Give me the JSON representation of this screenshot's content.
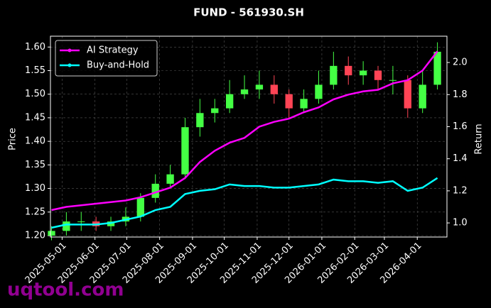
{
  "chart_data": {
    "type": "candlestick",
    "title": "FUND - 561930.SH",
    "ylabel": "Price",
    "y2label": "Return",
    "x": [
      "2025-04-21",
      "2025-05-05",
      "2025-05-19",
      "2025-06-02",
      "2025-06-16",
      "2025-06-30",
      "2025-07-14",
      "2025-07-28",
      "2025-08-11",
      "2025-08-25",
      "2025-09-08",
      "2025-09-22",
      "2025-10-06",
      "2025-10-20",
      "2025-11-03",
      "2025-11-17",
      "2025-12-01",
      "2025-12-15",
      "2025-12-29",
      "2026-01-12",
      "2026-01-26",
      "2026-02-09",
      "2026-02-23",
      "2026-03-09",
      "2026-03-23",
      "2026-04-06",
      "2026-04-20"
    ],
    "open": [
      1.2,
      1.21,
      1.23,
      1.23,
      1.22,
      1.23,
      1.24,
      1.28,
      1.31,
      1.33,
      1.43,
      1.46,
      1.47,
      1.5,
      1.51,
      1.52,
      1.5,
      1.47,
      1.49,
      1.52,
      1.56,
      1.54,
      1.55,
      1.53,
      1.53,
      1.47,
      1.52
    ],
    "high": [
      1.22,
      1.25,
      1.25,
      1.24,
      1.24,
      1.26,
      1.29,
      1.33,
      1.35,
      1.45,
      1.49,
      1.49,
      1.53,
      1.54,
      1.55,
      1.54,
      1.51,
      1.51,
      1.55,
      1.59,
      1.58,
      1.57,
      1.56,
      1.56,
      1.54,
      1.55,
      1.61
    ],
    "low": [
      1.19,
      1.2,
      1.21,
      1.21,
      1.21,
      1.22,
      1.23,
      1.27,
      1.3,
      1.32,
      1.41,
      1.44,
      1.46,
      1.49,
      1.49,
      1.48,
      1.45,
      1.46,
      1.48,
      1.51,
      1.52,
      1.52,
      1.51,
      1.5,
      1.45,
      1.46,
      1.51
    ],
    "close": [
      1.21,
      1.23,
      1.23,
      1.22,
      1.23,
      1.24,
      1.28,
      1.31,
      1.33,
      1.43,
      1.46,
      1.47,
      1.5,
      1.51,
      1.52,
      1.5,
      1.47,
      1.49,
      1.52,
      1.56,
      1.54,
      1.55,
      1.53,
      1.53,
      1.47,
      1.52,
      1.59
    ],
    "up_color": "#44ff44",
    "down_color": "#ff4455",
    "series": [
      {
        "name": "AI Strategy",
        "color": "#ff00ff",
        "axis": "y2",
        "values": [
          1.08,
          1.1,
          1.11,
          1.12,
          1.13,
          1.14,
          1.16,
          1.19,
          1.22,
          1.28,
          1.38,
          1.45,
          1.5,
          1.53,
          1.6,
          1.63,
          1.65,
          1.69,
          1.72,
          1.77,
          1.8,
          1.82,
          1.83,
          1.87,
          1.89,
          1.95,
          2.07
        ]
      },
      {
        "name": "Buy-and-Hold",
        "color": "#00ffff",
        "axis": "y2",
        "values": [
          0.97,
          0.99,
          0.99,
          0.99,
          1.0,
          1.02,
          1.04,
          1.08,
          1.1,
          1.18,
          1.2,
          1.21,
          1.24,
          1.23,
          1.23,
          1.22,
          1.22,
          1.23,
          1.24,
          1.27,
          1.26,
          1.26,
          1.25,
          1.26,
          1.2,
          1.22,
          1.28
        ]
      }
    ],
    "xlim": [
      "2025-04-20",
      "2026-04-29"
    ],
    "xticks": [
      "2025-05-01",
      "2025-06-01",
      "2025-07-01",
      "2025-08-01",
      "2025-09-01",
      "2025-10-01",
      "2025-11-01",
      "2025-12-01",
      "2026-01-01",
      "2026-02-01",
      "2026-03-01",
      "2026-04-01"
    ],
    "ylim": [
      1.197,
      1.623
    ],
    "yticks": [
      {
        "value": 1.2,
        "label": "1.20"
      },
      {
        "value": 1.25,
        "label": "1.25"
      },
      {
        "value": 1.3,
        "label": "1.30"
      },
      {
        "value": 1.35,
        "label": "1.35"
      },
      {
        "value": 1.4,
        "label": "1.40"
      },
      {
        "value": 1.45,
        "label": "1.45"
      },
      {
        "value": 1.5,
        "label": "1.50"
      },
      {
        "value": 1.55,
        "label": "1.55"
      },
      {
        "value": 1.6,
        "label": "1.60"
      }
    ],
    "y2lim": [
      0.912,
      2.164
    ],
    "y2ticks": [
      {
        "value": 1.0,
        "label": "1.0"
      },
      {
        "value": 1.2,
        "label": "1.2"
      },
      {
        "value": 1.4,
        "label": "1.4"
      },
      {
        "value": 1.6,
        "label": "1.6"
      },
      {
        "value": 1.8,
        "label": "1.8"
      },
      {
        "value": 2.0,
        "label": "2.0"
      }
    ],
    "grid": true,
    "legend": "upper left",
    "watermark": "uqtool.com"
  }
}
